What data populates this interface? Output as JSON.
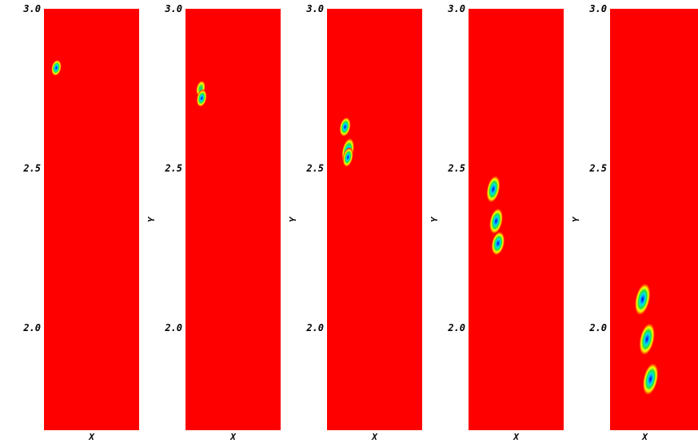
{
  "chart_data": {
    "type": "heatmap",
    "description_note": "",
    "panels": [
      {
        "xlabel": "X",
        "ylabel": "",
        "ylim": [
          1.68,
          3.0
        ],
        "yticks": [
          {
            "value": 3.0,
            "label": "3.0"
          },
          {
            "value": 2.5,
            "label": "2.5"
          },
          {
            "value": 2.0,
            "label": "2.0"
          }
        ],
        "blobs": [
          {
            "x": 0.13,
            "y": 2.815,
            "rx": 0.05,
            "ry": 0.025,
            "peak": 1.0
          }
        ]
      },
      {
        "xlabel": "X",
        "ylabel": "Y",
        "ylim": [
          1.68,
          3.0
        ],
        "yticks": [
          {
            "value": 3.0,
            "label": "3.0"
          },
          {
            "value": 2.5,
            "label": "2.5"
          },
          {
            "value": 2.0,
            "label": "2.0"
          }
        ],
        "blobs": [
          {
            "x": 0.16,
            "y": 2.75,
            "rx": 0.045,
            "ry": 0.025,
            "peak": 0.6
          },
          {
            "x": 0.17,
            "y": 2.72,
            "rx": 0.05,
            "ry": 0.027,
            "peak": 1.0
          }
        ]
      },
      {
        "xlabel": "X",
        "ylabel": "Y",
        "ylim": [
          1.68,
          3.0
        ],
        "yticks": [
          {
            "value": 3.0,
            "label": "3.0"
          },
          {
            "value": 2.5,
            "label": "2.5"
          },
          {
            "value": 2.0,
            "label": "2.0"
          }
        ],
        "blobs": [
          {
            "x": 0.19,
            "y": 2.63,
            "rx": 0.055,
            "ry": 0.03,
            "peak": 0.85
          },
          {
            "x": 0.22,
            "y": 2.555,
            "rx": 0.06,
            "ry": 0.04,
            "peak": 0.95
          },
          {
            "x": 0.22,
            "y": 2.535,
            "rx": 0.05,
            "ry": 0.03,
            "peak": 0.9
          }
        ]
      },
      {
        "xlabel": "X",
        "ylabel": "Y",
        "ylim": [
          1.68,
          3.0
        ],
        "yticks": [
          {
            "value": 3.0,
            "label": "3.0"
          },
          {
            "value": 2.5,
            "label": "2.5"
          },
          {
            "value": 2.0,
            "label": "2.0"
          }
        ],
        "blobs": [
          {
            "x": 0.26,
            "y": 2.435,
            "rx": 0.065,
            "ry": 0.042,
            "peak": 1.0
          },
          {
            "x": 0.29,
            "y": 2.335,
            "rx": 0.065,
            "ry": 0.04,
            "peak": 0.95
          },
          {
            "x": 0.31,
            "y": 2.265,
            "rx": 0.065,
            "ry": 0.037,
            "peak": 1.0
          }
        ]
      },
      {
        "xlabel": "X",
        "ylabel": "Y",
        "ylim": [
          1.68,
          3.0
        ],
        "yticks": [
          {
            "value": 3.0,
            "label": "3.0"
          },
          {
            "value": 2.5,
            "label": "2.5"
          },
          {
            "value": 2.0,
            "label": "2.0"
          }
        ],
        "blobs": [
          {
            "x": 0.37,
            "y": 2.09,
            "rx": 0.08,
            "ry": 0.05,
            "peak": 1.0
          },
          {
            "x": 0.42,
            "y": 1.965,
            "rx": 0.08,
            "ry": 0.05,
            "peak": 1.0
          },
          {
            "x": 0.46,
            "y": 1.84,
            "rx": 0.08,
            "ry": 0.05,
            "peak": 1.0
          }
        ]
      }
    ]
  }
}
